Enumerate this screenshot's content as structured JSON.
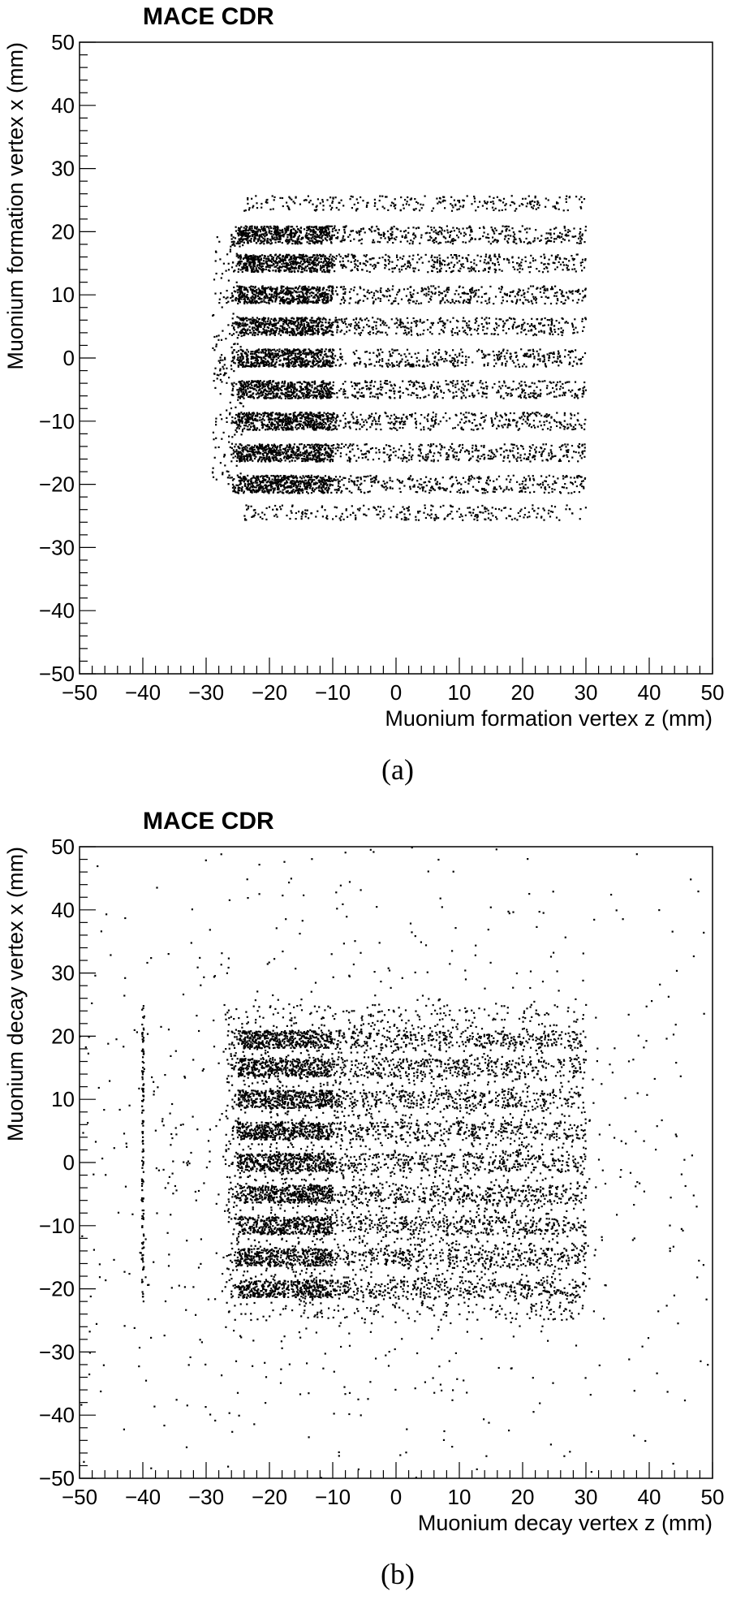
{
  "chart_data": [
    {
      "type": "scatter",
      "panel_caption": "(a)",
      "title": "MACE CDR",
      "xlabel": "Muonium formation vertex z (mm)",
      "ylabel": "Muonium formation vertex x (mm)",
      "xlim": [
        -50,
        50
      ],
      "ylim": [
        -50,
        50
      ],
      "xticks": [
        -50,
        -40,
        -30,
        -20,
        -10,
        0,
        10,
        20,
        30,
        40,
        50
      ],
      "yticks": [
        -50,
        -40,
        -30,
        -20,
        -10,
        0,
        10,
        20,
        30,
        40,
        50
      ],
      "tick_labels": [
        "−50",
        "−40",
        "−30",
        "−20",
        "−10",
        "0",
        "10",
        "20",
        "30",
        "40",
        "50"
      ],
      "grid": false,
      "marker_color": "#000000",
      "z_range": [
        -30,
        30
      ],
      "dense_z_range": [
        -25,
        -10
      ],
      "bands_x": [
        19.5,
        15,
        10,
        5,
        0,
        -5,
        -10,
        -15,
        -20
      ],
      "band_halfwidth": 1.4,
      "halo_x": [
        24.5,
        -24.5
      ],
      "halo_halfwidth": 1.2
    },
    {
      "type": "scatter",
      "panel_caption": "(b)",
      "title": "MACE CDR",
      "xlabel": "Muonium decay vertex z (mm)",
      "ylabel": "Muonium decay vertex x (mm)",
      "xlim": [
        -50,
        50
      ],
      "ylim": [
        -50,
        50
      ],
      "xticks": [
        -50,
        -40,
        -30,
        -20,
        -10,
        0,
        10,
        20,
        30,
        40,
        50
      ],
      "yticks": [
        -50,
        -40,
        -30,
        -20,
        -10,
        0,
        10,
        20,
        30,
        40,
        50
      ],
      "tick_labels": [
        "−50",
        "−40",
        "−30",
        "−20",
        "−10",
        "0",
        "10",
        "20",
        "30",
        "40",
        "50"
      ],
      "grid": false,
      "marker_color": "#000000",
      "z_range": [
        -30,
        30
      ],
      "dense_z_range": [
        -25,
        -10
      ],
      "bands_x": [
        19.5,
        15,
        10,
        5,
        0,
        -5,
        -10,
        -15,
        -20
      ],
      "band_halfwidth": 1.4,
      "diffuse_core_x": [
        -25,
        25
      ],
      "vertical_line_z": -40,
      "vertical_line_x_range": [
        -22,
        25
      ]
    }
  ]
}
